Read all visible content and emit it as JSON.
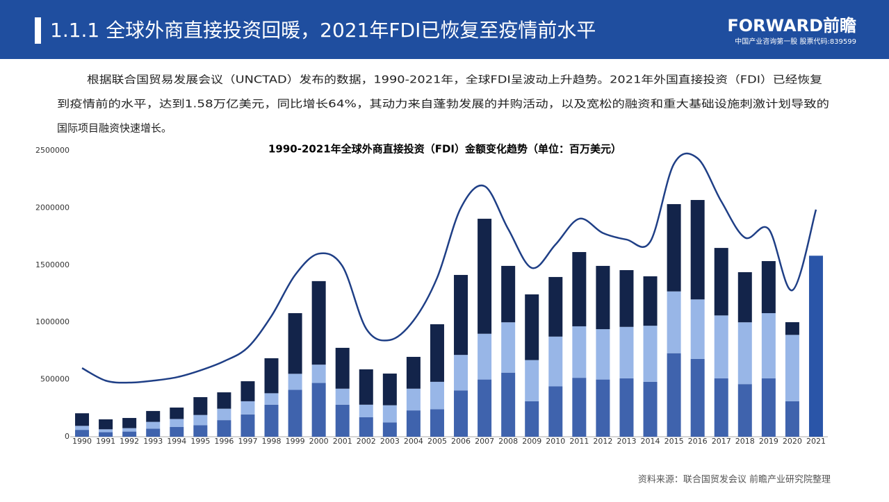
{
  "header": {
    "title": "1.1.1 全球外商直接投资回暖，2021年FDI已恢复至疫情前水平",
    "logo": "FORWARD前瞻",
    "logo_sub": "中国产业咨询第一股 股票代码:839599"
  },
  "paragraph": [
    "根据联合国贸易发展会议（UNCTAD）发布的数据，1990-2021年，全球FDI呈波动上升趋势。2021年外国直接投资（FDI）已经恢复",
    "到疫情前的水平，达到1.58万亿美元，同比增长64%，其动力来自蓬勃发展的并购活动，以及宽松的融资和重大基础设施刺激计划导致的",
    "国际项目融资快速增长。"
  ],
  "source": "资料来源：联合国贸发会议 前瞻产业研究院整理",
  "chart_data": {
    "type": "bar",
    "title": "1990-2021年全球外商直接投资（FDI）金额变化趋势（单位：百万美元）",
    "categories": [
      "1990",
      "1991",
      "1992",
      "1993",
      "1994",
      "1995",
      "1996",
      "1997",
      "1998",
      "1999",
      "2000",
      "2001",
      "2002",
      "2003",
      "2004",
      "2005",
      "2006",
      "2007",
      "2008",
      "2009",
      "2010",
      "2011",
      "2012",
      "2013",
      "2014",
      "2015",
      "2016",
      "2017",
      "2018",
      "2019",
      "2020",
      "2021"
    ],
    "series": [
      {
        "color": "#3f63ad",
        "values": [
          60000,
          40000,
          45000,
          70000,
          85000,
          100000,
          145000,
          195000,
          280000,
          410000,
          470000,
          280000,
          170000,
          125000,
          230000,
          240000,
          405000,
          500000,
          560000,
          310000,
          440000,
          515000,
          500000,
          510000,
          480000,
          730000,
          680000,
          510000,
          460000,
          510000,
          310000,
          null
        ]
      },
      {
        "color": "#98b6e7",
        "values": [
          35000,
          25000,
          30000,
          60000,
          70000,
          90000,
          100000,
          115000,
          100000,
          140000,
          160000,
          140000,
          110000,
          150000,
          190000,
          240000,
          310000,
          400000,
          440000,
          360000,
          435000,
          450000,
          440000,
          450000,
          490000,
          540000,
          520000,
          550000,
          540000,
          570000,
          580000,
          null
        ]
      },
      {
        "color": "#13244a",
        "values": [
          110000,
          87000,
          89000,
          95000,
          100000,
          156000,
          143000,
          175000,
          306000,
          530000,
          730000,
          357000,
          309000,
          277000,
          278000,
          503000,
          699000,
          1005000,
          493000,
          574000,
          521000,
          649000,
          553000,
          496000,
          432000,
          763000,
          869000,
          590000,
          438000,
          455000,
          111000,
          null
        ]
      },
      {
        "color": "#2a55a8",
        "values": [
          null,
          null,
          null,
          null,
          null,
          null,
          null,
          null,
          null,
          null,
          null,
          null,
          null,
          null,
          null,
          null,
          null,
          null,
          null,
          null,
          null,
          null,
          null,
          null,
          null,
          null,
          null,
          null,
          null,
          null,
          null,
          1582000
        ]
      },
      {
        "type": "line",
        "color": "#1f3f86",
        "values": [
          600000,
          490000,
          473000,
          490000,
          520000,
          580000,
          660000,
          780000,
          1055000,
          1414000,
          1600000,
          1490000,
          945000,
          845000,
          1015000,
          1390000,
          2000000,
          2190000,
          1815000,
          1475000,
          1680000,
          1905000,
          1780000,
          1723000,
          1705000,
          2385000,
          2433000,
          2057000,
          1740000,
          1815000,
          1280000,
          1985000
        ]
      }
    ],
    "ylim": [
      0,
      2500000
    ],
    "yticks": [
      0,
      500000,
      1000000,
      1500000,
      2000000,
      2500000
    ],
    "grid": false
  }
}
